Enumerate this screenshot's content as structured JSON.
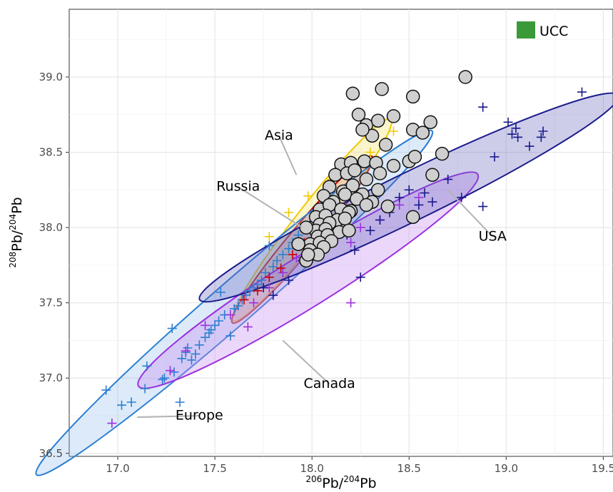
{
  "chart_data": {
    "type": "scatter",
    "xlabel": {
      "pre": "206",
      "main": "Pb/",
      "sup2": "204",
      "post": "Pb"
    },
    "ylabel": {
      "pre": "208",
      "main": "Pb/",
      "sup2": "204",
      "post": "Pb"
    },
    "xlim": [
      16.75,
      19.55
    ],
    "ylim": [
      36.48,
      39.45
    ],
    "xticks": [
      "17.0",
      "17.5",
      "18.0",
      "18.5",
      "19.0",
      "19.5"
    ],
    "xtick_values": [
      17.0,
      17.5,
      18.0,
      18.5,
      19.0,
      19.5
    ],
    "yticks": [
      "36.5",
      "37.0",
      "37.5",
      "38.0",
      "38.5",
      "39.0"
    ],
    "ytick_values": [
      36.5,
      37.0,
      37.5,
      38.0,
      38.5,
      39.0
    ],
    "grid": true,
    "legend": {
      "label": "UCC",
      "color": "#3a9a3a",
      "placement": "top-right"
    },
    "colors": {
      "Europe": "#2b7fd1",
      "Canada": "#9b30e0",
      "Russia": "#cc0000",
      "Asia": "#f0c800",
      "USA": "#1a1a8c",
      "UCC_fill": "#cfcfcf"
    },
    "regions": [
      {
        "name": "Asia",
        "label": "Asia",
        "color": "#f0c800",
        "fill": "#f7e36a",
        "fill_opacity": 0.35,
        "center": [
          18.0,
          38.05
        ],
        "semi_axis_x": 0.66,
        "semi_axis_y": 0.1,
        "angle_deg": -52
      },
      {
        "name": "Russia",
        "label": "Russia",
        "color": "#cc0000",
        "fill": "#e07070",
        "fill_opacity": 0.3,
        "center": [
          17.95,
          37.92
        ],
        "semi_axis_x": 0.56,
        "semi_axis_y": 0.085,
        "angle_deg": -50
      },
      {
        "name": "Europe",
        "label": "Europe",
        "color": "#2b7fd1",
        "fill": "#8ab8ea",
        "fill_opacity": 0.3,
        "center": [
          17.6,
          37.5
        ],
        "semi_axis_x": 1.35,
        "semi_axis_y": 0.14,
        "angle_deg": -41
      },
      {
        "name": "Canada",
        "label": "Canada",
        "color": "#9b30e0",
        "fill": "#c58bf0",
        "fill_opacity": 0.35,
        "center": [
          17.98,
          37.65
        ],
        "semi_axis_x": 1.03,
        "semi_axis_y": 0.17,
        "angle_deg": -32
      },
      {
        "name": "USA",
        "label": "USA",
        "color": "#1a1a8c",
        "fill": "#5a5ab8",
        "fill_opacity": 0.3,
        "center": [
          18.5,
          38.2
        ],
        "semi_axis_x": 1.2,
        "semi_axis_y": 0.16,
        "angle_deg": -26
      }
    ],
    "region_labels": [
      {
        "name": "Asia",
        "text": "Asia",
        "at": [
          17.83,
          38.61
        ],
        "line_to": [
          17.92,
          38.35
        ]
      },
      {
        "name": "Russia",
        "text": "Russia",
        "at": [
          17.62,
          38.27
        ],
        "line_to": [
          17.95,
          38.0
        ]
      },
      {
        "name": "USA",
        "text": "USA",
        "at": [
          18.93,
          37.94
        ],
        "line_to": [
          18.7,
          38.25
        ]
      },
      {
        "name": "Canada",
        "text": "Canada",
        "at": [
          18.09,
          36.96
        ],
        "line_to": [
          17.85,
          37.25
        ]
      },
      {
        "name": "Europe",
        "text": "Europe",
        "at": [
          17.42,
          36.75
        ],
        "line_to": [
          17.1,
          36.74
        ]
      }
    ],
    "series": [
      {
        "name": "Europe",
        "marker": "+",
        "color": "#2b7fd1",
        "x": [
          16.94,
          17.02,
          17.07,
          17.14,
          17.15,
          17.23,
          17.24,
          17.28,
          17.29,
          17.32,
          17.33,
          17.35,
          17.36,
          17.38,
          17.4,
          17.42,
          17.45,
          17.47,
          17.48,
          17.5,
          17.52,
          17.53,
          17.55,
          17.58,
          17.6,
          17.62,
          17.64,
          17.66,
          17.68,
          17.7,
          17.72,
          17.74,
          17.76,
          17.78,
          17.8,
          17.82,
          17.85,
          17.88,
          17.9,
          17.93
        ],
        "y": [
          36.92,
          36.82,
          36.84,
          36.93,
          37.08,
          36.99,
          37.0,
          37.33,
          37.04,
          36.84,
          37.13,
          37.17,
          37.2,
          37.12,
          37.16,
          37.22,
          37.27,
          37.3,
          37.32,
          37.35,
          37.38,
          37.57,
          37.42,
          37.28,
          37.46,
          37.48,
          37.52,
          37.55,
          37.58,
          37.6,
          37.62,
          37.65,
          37.7,
          37.88,
          37.74,
          37.78,
          37.82,
          37.86,
          37.9,
          37.95
        ]
      },
      {
        "name": "Canada",
        "marker": "+",
        "color": "#9b30e0",
        "x": [
          16.97,
          17.27,
          17.35,
          17.45,
          17.58,
          17.67,
          17.7,
          17.78,
          17.85,
          17.92,
          18.0,
          18.1,
          18.2,
          18.25,
          18.35,
          18.45,
          18.55,
          18.2
        ],
        "y": [
          36.7,
          37.05,
          37.18,
          37.35,
          37.42,
          37.34,
          37.5,
          37.6,
          37.7,
          37.8,
          37.88,
          37.93,
          37.9,
          38.0,
          38.05,
          38.15,
          38.2,
          37.5
        ]
      },
      {
        "name": "Russia",
        "marker": "+",
        "color": "#cc0000",
        "x": [
          17.65,
          17.72,
          17.78,
          17.84,
          17.9,
          17.96,
          18.02,
          18.08,
          18.14,
          18.2
        ],
        "y": [
          37.52,
          37.58,
          37.67,
          37.73,
          37.82,
          37.9,
          37.98,
          38.05,
          38.12,
          38.2
        ]
      },
      {
        "name": "Asia",
        "marker": "+",
        "color": "#f0c800",
        "x": [
          17.78,
          17.88,
          17.98,
          18.1,
          18.22,
          18.3,
          18.42
        ],
        "y": [
          37.94,
          38.1,
          38.21,
          38.32,
          38.43,
          38.5,
          38.64
        ]
      },
      {
        "name": "USA",
        "marker": "+",
        "color": "#1a1a8c",
        "x": [
          17.75,
          17.8,
          17.88,
          17.95,
          18.02,
          18.1,
          18.18,
          18.22,
          18.25,
          18.3,
          18.35,
          18.4,
          18.45,
          18.5,
          18.55,
          18.58,
          18.62,
          18.7,
          18.77,
          18.88,
          18.88,
          18.94,
          19.01,
          19.03,
          19.05,
          19.06,
          19.12,
          19.18,
          19.19,
          19.39
        ],
        "y": [
          37.6,
          37.55,
          37.65,
          37.78,
          37.85,
          37.9,
          37.95,
          37.85,
          37.67,
          37.98,
          38.05,
          38.1,
          38.2,
          38.25,
          38.15,
          38.23,
          38.17,
          38.32,
          38.2,
          38.14,
          38.8,
          38.47,
          38.7,
          38.62,
          38.66,
          38.6,
          38.54,
          38.6,
          38.64,
          38.9
        ]
      },
      {
        "name": "UCC",
        "marker": "circle",
        "color": "#cfcfcf",
        "x": [
          18.21,
          18.36,
          18.52,
          18.79,
          18.24,
          18.28,
          18.31,
          18.34,
          18.42,
          18.52,
          18.57,
          18.61,
          18.26,
          18.38,
          18.15,
          18.2,
          18.27,
          18.33,
          18.42,
          18.5,
          18.53,
          18.67,
          18.12,
          18.18,
          18.22,
          18.28,
          18.35,
          18.62,
          18.09,
          18.16,
          18.21,
          18.26,
          18.34,
          18.06,
          18.11,
          18.17,
          18.23,
          18.31,
          18.04,
          18.09,
          18.15,
          18.2,
          18.28,
          18.39,
          18.52,
          18.02,
          18.07,
          18.13,
          18.19,
          18.04,
          18.09,
          18.17,
          18.02,
          18.07,
          18.14,
          17.97,
          18.03,
          18.08,
          17.99,
          18.04,
          18.1,
          18.19,
          17.93,
          17.99,
          18.06,
          17.97,
          18.03,
          17.98
        ],
        "y": [
          38.89,
          38.92,
          38.87,
          39.0,
          38.75,
          38.68,
          38.61,
          38.71,
          38.74,
          38.65,
          38.63,
          38.7,
          38.65,
          38.55,
          38.42,
          38.43,
          38.44,
          38.43,
          38.41,
          38.44,
          38.47,
          38.49,
          38.35,
          38.36,
          38.38,
          38.32,
          38.36,
          38.35,
          38.27,
          38.24,
          38.28,
          38.22,
          38.25,
          38.21,
          38.17,
          38.22,
          38.19,
          38.17,
          38.12,
          38.15,
          38.12,
          38.11,
          38.15,
          38.14,
          38.07,
          38.07,
          38.08,
          38.05,
          38.1,
          38.02,
          38.03,
          38.06,
          37.98,
          37.99,
          37.97,
          38.0,
          37.94,
          37.95,
          37.89,
          37.9,
          37.91,
          37.98,
          37.89,
          37.85,
          37.87,
          37.78,
          37.82,
          37.82
        ]
      }
    ]
  }
}
